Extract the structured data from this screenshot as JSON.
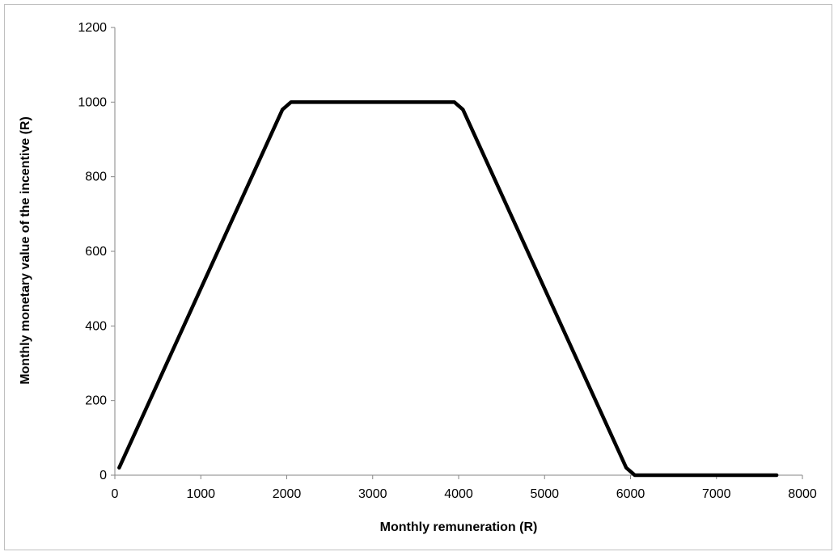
{
  "chart_data": {
    "type": "line",
    "title": "",
    "xlabel": "Monthly remuneration (R)",
    "ylabel": "Monthly monetary value of the incentive (R)",
    "xlim": [
      0,
      8000
    ],
    "ylim": [
      0,
      1200
    ],
    "xticks": [
      "0",
      "1000",
      "2000",
      "3000",
      "4000",
      "5000",
      "6000",
      "7000",
      "8000"
    ],
    "yticks": [
      "0",
      "200",
      "400",
      "600",
      "800",
      "1000",
      "1200"
    ],
    "grid": false,
    "legend": "none",
    "series": [
      {
        "color": "#000000",
        "x": [
          50,
          1950,
          2050,
          3900,
          3950,
          4050,
          5950,
          6050,
          7700
        ],
        "y": [
          20,
          980,
          1000,
          1000,
          1000,
          980,
          20,
          0,
          0
        ]
      }
    ]
  }
}
